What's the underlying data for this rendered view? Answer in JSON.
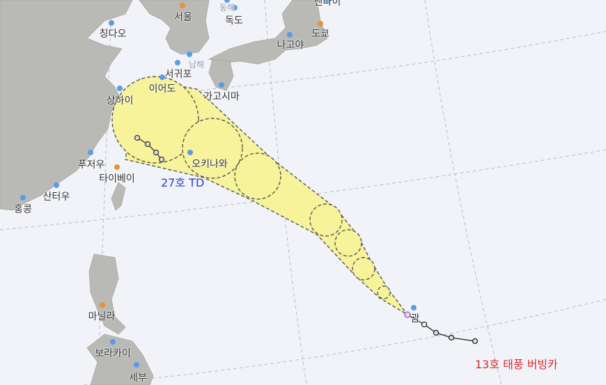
{
  "colors": {
    "sea": "#f1f3f8",
    "land": "#b9b9b6",
    "cone": "#f6f39a",
    "marker": "#5b9be6",
    "capital": "#e8913a",
    "storm_td": "#2a3fcf",
    "storm_typhoon": "#d92b2b"
  },
  "places": [
    {
      "name": "센다이",
      "icon": "pin-icon"
    },
    {
      "name": "서울",
      "icon": "capital-pin-icon"
    },
    {
      "name": "동해",
      "icon": "pin-icon"
    },
    {
      "name": "독도",
      "icon": "pin-icon"
    },
    {
      "name": "칭다오",
      "icon": "pin-icon"
    },
    {
      "name": "도쿄",
      "icon": "capital-pin-icon"
    },
    {
      "name": "나고야",
      "icon": "pin-icon"
    },
    {
      "name": "남해",
      "icon": "pin-icon"
    },
    {
      "name": "서귀포",
      "icon": "pin-icon"
    },
    {
      "name": "이어도",
      "icon": "pin-icon"
    },
    {
      "name": "가고시마",
      "icon": "pin-icon"
    },
    {
      "name": "상하이",
      "icon": "pin-icon"
    },
    {
      "name": "오키나와",
      "icon": "pin-icon"
    },
    {
      "name": "푸저우",
      "icon": "pin-icon"
    },
    {
      "name": "타이베이",
      "icon": "capital-pin-icon"
    },
    {
      "name": "산터우",
      "icon": "pin-icon"
    },
    {
      "name": "홍콩",
      "icon": "pin-icon"
    },
    {
      "name": "마닐라",
      "icon": "capital-pin-icon"
    },
    {
      "name": "보라카이",
      "icon": "pin-icon"
    },
    {
      "name": "세부",
      "icon": "pin-icon"
    },
    {
      "name": "괌",
      "icon": "pin-icon"
    }
  ],
  "storms": [
    {
      "label": "27호 TD"
    },
    {
      "label": "13호 태풍 버빙카"
    }
  ]
}
